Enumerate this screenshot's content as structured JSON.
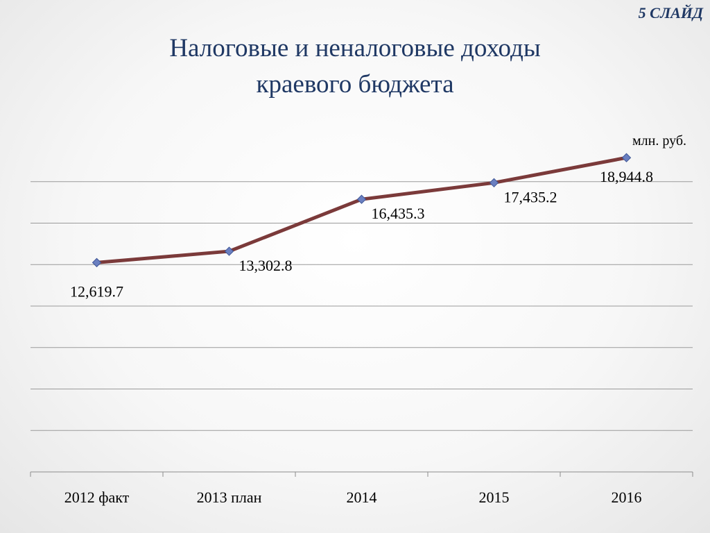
{
  "slide": {
    "label": "5 СЛАЙД",
    "title_line1": "Налоговые и неналоговые доходы",
    "title_line2": "краевого бюджета"
  },
  "chart_data": {
    "type": "line",
    "unit": "млн. руб.",
    "categories": [
      "2012 факт",
      "2013 план",
      "2014",
      "2015",
      "2016"
    ],
    "series": [
      {
        "values": [
          12619.7,
          13302.8,
          16435.3,
          17435.2,
          18944.8
        ],
        "labels": [
          "12,619.7",
          "13,302.8",
          "16,435.3",
          "17,435.2",
          "18,944.8"
        ],
        "line_color": "#7b3a3a",
        "marker_color": "#6a7fc0"
      }
    ],
    "ylim": [
      0,
      20000
    ],
    "grid": true,
    "legend": "none"
  }
}
